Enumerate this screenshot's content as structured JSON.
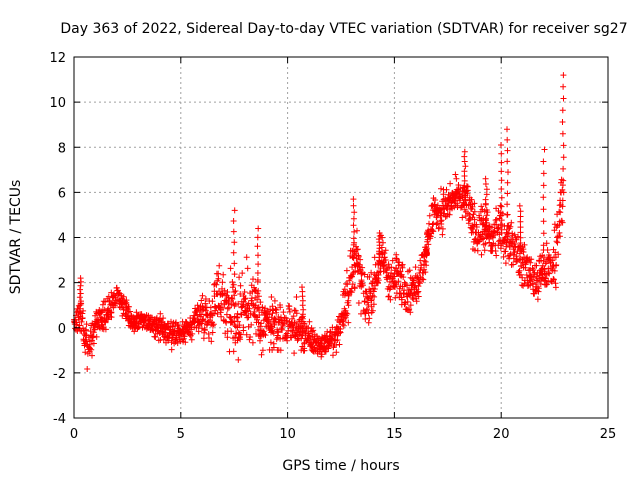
{
  "chart_data": {
    "type": "scatter",
    "title": "Day 363 of 2022, Sidereal Day-to-day VTEC variation (SDTVAR) for receiver sg27",
    "xlabel": "GPS time / hours",
    "ylabel": "SDTVAR / TECUs",
    "xlim": [
      0,
      25
    ],
    "ylim": [
      -4,
      12
    ],
    "xticks": [
      0,
      5,
      10,
      15,
      20,
      25
    ],
    "yticks": [
      -4,
      -2,
      0,
      2,
      4,
      6,
      8,
      10,
      12
    ],
    "grid": true,
    "marker": "+",
    "series_color": "#ff0000",
    "profile": [
      [
        0.0,
        0.2,
        0.9
      ],
      [
        0.3,
        0.5,
        1.4
      ],
      [
        0.6,
        -0.9,
        1.2
      ],
      [
        0.9,
        -0.3,
        1.0
      ],
      [
        1.2,
        0.3,
        1.0
      ],
      [
        1.6,
        0.8,
        1.0
      ],
      [
        2.0,
        1.5,
        0.6
      ],
      [
        2.4,
        0.9,
        0.8
      ],
      [
        2.8,
        0.2,
        0.7
      ],
      [
        3.2,
        0.4,
        0.5
      ],
      [
        3.6,
        0.0,
        0.6
      ],
      [
        4.0,
        0.0,
        0.8
      ],
      [
        4.5,
        -0.3,
        0.8
      ],
      [
        5.0,
        -0.3,
        0.7
      ],
      [
        5.5,
        0.1,
        1.0
      ],
      [
        6.0,
        0.7,
        1.2
      ],
      [
        6.4,
        0.5,
        1.4
      ],
      [
        6.8,
        1.6,
        2.0
      ],
      [
        7.2,
        0.8,
        2.5
      ],
      [
        7.5,
        0.5,
        3.0
      ],
      [
        8.0,
        1.0,
        2.5
      ],
      [
        8.4,
        1.0,
        3.0
      ],
      [
        8.8,
        -0.1,
        1.8
      ],
      [
        9.2,
        0.1,
        1.6
      ],
      [
        9.6,
        0.1,
        1.4
      ],
      [
        10.0,
        -0.1,
        1.2
      ],
      [
        10.4,
        0.1,
        1.5
      ],
      [
        10.8,
        -0.3,
        1.2
      ],
      [
        11.2,
        -0.6,
        1.0
      ],
      [
        11.6,
        -0.8,
        0.8
      ],
      [
        12.0,
        -0.6,
        0.8
      ],
      [
        12.4,
        -0.2,
        0.9
      ],
      [
        12.8,
        1.6,
        2.0
      ],
      [
        13.2,
        3.2,
        1.8
      ],
      [
        13.6,
        1.0,
        1.6
      ],
      [
        14.0,
        1.8,
        1.4
      ],
      [
        14.4,
        3.2,
        1.2
      ],
      [
        14.8,
        2.2,
        1.6
      ],
      [
        15.2,
        2.3,
        1.6
      ],
      [
        15.6,
        1.6,
        1.4
      ],
      [
        16.0,
        1.8,
        1.4
      ],
      [
        16.4,
        3.0,
        1.0
      ],
      [
        16.8,
        5.0,
        1.4
      ],
      [
        17.2,
        5.2,
        1.4
      ],
      [
        17.6,
        5.6,
        1.2
      ],
      [
        18.0,
        5.8,
        1.2
      ],
      [
        18.4,
        5.6,
        1.2
      ],
      [
        18.8,
        4.2,
        1.6
      ],
      [
        19.2,
        4.4,
        1.6
      ],
      [
        19.6,
        4.0,
        1.4
      ],
      [
        20.0,
        4.2,
        1.6
      ],
      [
        20.4,
        4.0,
        1.6
      ],
      [
        20.8,
        3.2,
        1.4
      ],
      [
        21.2,
        2.6,
        1.4
      ],
      [
        21.6,
        2.0,
        1.4
      ],
      [
        22.0,
        2.6,
        1.6
      ],
      [
        22.4,
        2.6,
        1.8
      ],
      [
        22.7,
        4.5,
        2.4
      ],
      [
        22.9,
        6.0,
        3.0
      ]
    ],
    "spikes": [
      [
        0.3,
        2.2
      ],
      [
        7.5,
        5.2
      ],
      [
        8.6,
        4.4
      ],
      [
        10.7,
        1.8
      ],
      [
        13.1,
        5.7
      ],
      [
        14.3,
        4.2
      ],
      [
        16.5,
        3.2
      ],
      [
        18.3,
        7.8
      ],
      [
        19.3,
        6.6
      ],
      [
        20.0,
        8.1
      ],
      [
        20.3,
        8.8
      ],
      [
        20.9,
        5.4
      ],
      [
        22.0,
        7.9
      ],
      [
        22.9,
        11.2
      ]
    ]
  }
}
